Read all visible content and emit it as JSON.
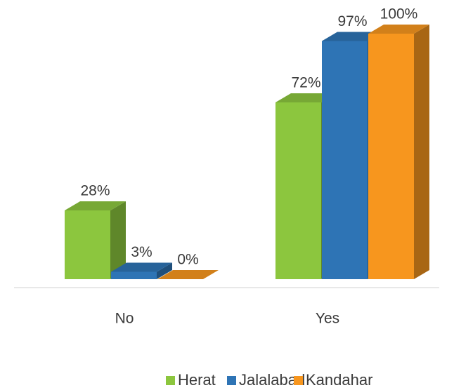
{
  "chart_data": {
    "type": "bar3d",
    "categories": [
      "No",
      "Yes"
    ],
    "series": [
      {
        "name": "Herat",
        "color": "#8cc63e",
        "values": [
          28,
          72
        ],
        "value_labels": [
          "28%",
          "72%"
        ]
      },
      {
        "name": "Jalalabad",
        "color": "#2e74b5",
        "values": [
          3,
          97
        ],
        "value_labels": [
          "3%",
          "97%"
        ]
      },
      {
        "name": "Kandahar",
        "color": "#f7961e",
        "values": [
          0,
          100
        ],
        "value_labels": [
          "0%",
          "100%"
        ]
      }
    ],
    "ylim": [
      0,
      100
    ]
  }
}
